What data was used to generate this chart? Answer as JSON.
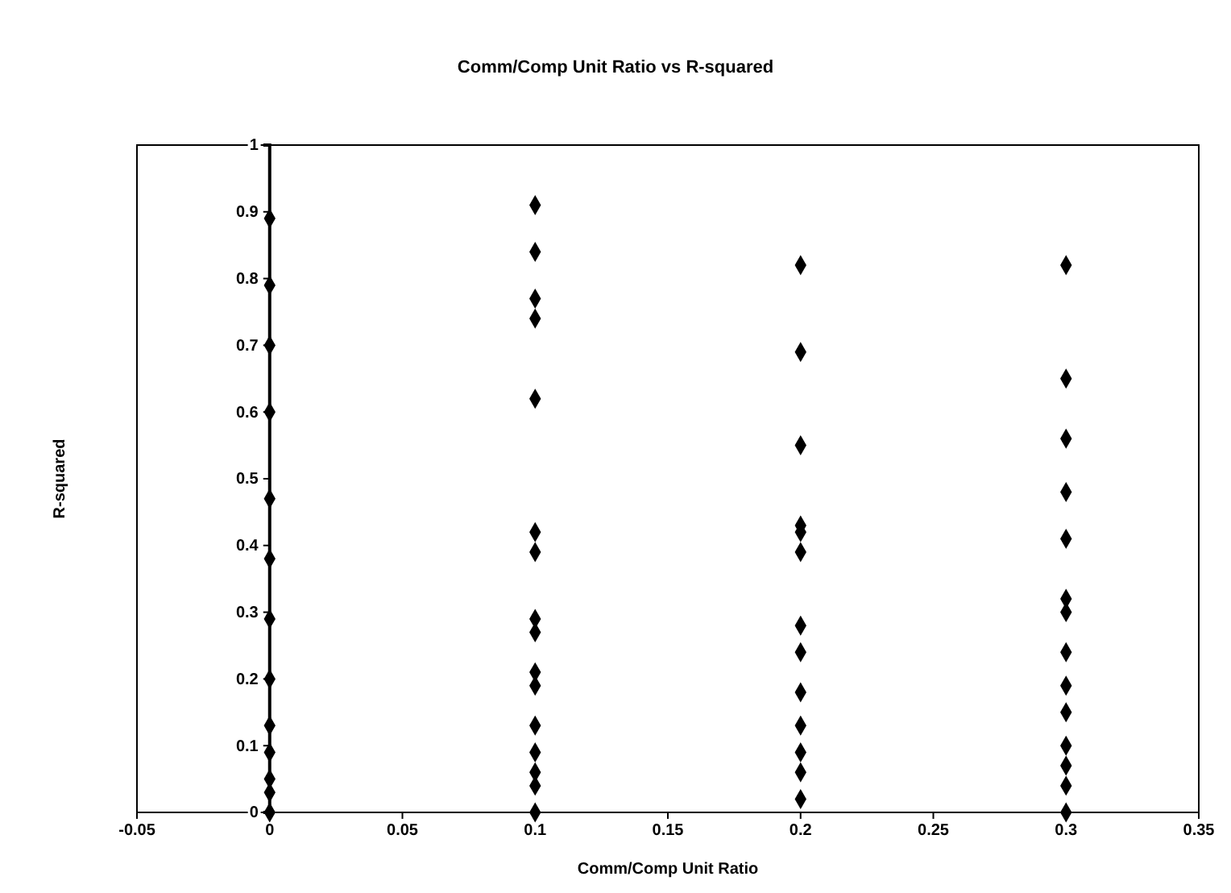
{
  "chart_data": {
    "type": "scatter",
    "title": "Comm/Comp Unit Ratio vs R-squared",
    "xlabel": "Comm/Comp Unit Ratio",
    "ylabel": "R-squared",
    "xlim": [
      -0.05,
      0.35
    ],
    "xticks": [
      -0.05,
      0,
      0.05,
      0.1,
      0.15,
      0.2,
      0.25,
      0.3,
      0.35
    ],
    "ylim": [
      0,
      1
    ],
    "yticks": [
      0,
      0.1,
      0.2,
      0.3,
      0.4,
      0.5,
      0.6,
      0.7,
      0.8,
      0.9,
      1
    ],
    "marker": "diamond",
    "grid": false,
    "series": [
      {
        "color": "#000000",
        "x": [
          0,
          0,
          0,
          0,
          0,
          0,
          0,
          0,
          0,
          0,
          0,
          0,
          0,
          0.1,
          0.1,
          0.1,
          0.1,
          0.1,
          0.1,
          0.1,
          0.1,
          0.1,
          0.1,
          0.1,
          0.1,
          0.1,
          0.1,
          0.1,
          0.1,
          0.2,
          0.2,
          0.2,
          0.2,
          0.2,
          0.2,
          0.2,
          0.2,
          0.2,
          0.2,
          0.2,
          0.2,
          0.2,
          0.3,
          0.3,
          0.3,
          0.3,
          0.3,
          0.3,
          0.3,
          0.3,
          0.3,
          0.3,
          0.3,
          0.3,
          0.3,
          0.3
        ],
        "values": [
          0.89,
          0.79,
          0.7,
          0.6,
          0.47,
          0.38,
          0.29,
          0.2,
          0.13,
          0.09,
          0.05,
          0.03,
          0,
          0.91,
          0.84,
          0.77,
          0.74,
          0.62,
          0.42,
          0.39,
          0.29,
          0.27,
          0.21,
          0.19,
          0.13,
          0.09,
          0.06,
          0.04,
          0,
          0.82,
          0.69,
          0.55,
          0.43,
          0.42,
          0.39,
          0.28,
          0.24,
          0.18,
          0.13,
          0.09,
          0.06,
          0.02,
          0.82,
          0.65,
          0.56,
          0.48,
          0.41,
          0.32,
          0.3,
          0.24,
          0.19,
          0.15,
          0.1,
          0.07,
          0.04,
          0
        ]
      }
    ]
  }
}
